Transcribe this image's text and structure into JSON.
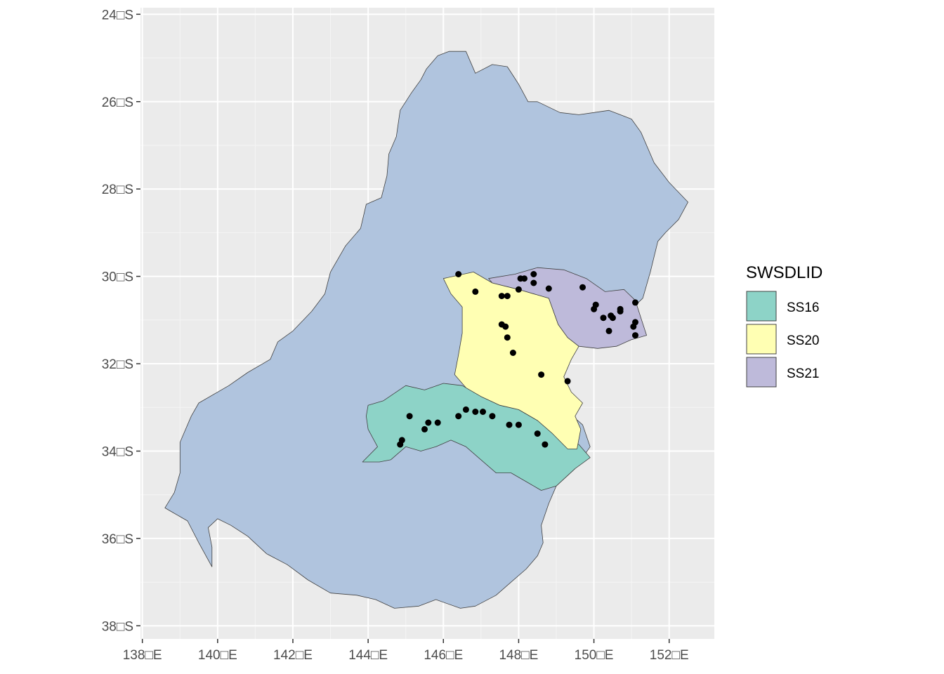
{
  "chart_data": {
    "type": "map",
    "x_axis": {
      "ticks": [
        {
          "value": 138,
          "label": "138□E"
        },
        {
          "value": 140,
          "label": "140□E"
        },
        {
          "value": 142,
          "label": "142□E"
        },
        {
          "value": 144,
          "label": "144□E"
        },
        {
          "value": 146,
          "label": "146□E"
        },
        {
          "value": 148,
          "label": "148□E"
        },
        {
          "value": 150,
          "label": "150□E"
        },
        {
          "value": 152,
          "label": "152□E"
        }
      ],
      "range": [
        137.95,
        153.2
      ]
    },
    "y_axis": {
      "ticks": [
        {
          "value": -24,
          "label": "24□S"
        },
        {
          "value": -26,
          "label": "26□S"
        },
        {
          "value": -28,
          "label": "28□S"
        },
        {
          "value": -30,
          "label": "30□S"
        },
        {
          "value": -32,
          "label": "32□S"
        },
        {
          "value": -34,
          "label": "34□S"
        },
        {
          "value": -36,
          "label": "36□S"
        },
        {
          "value": -38,
          "label": "38□S"
        }
      ],
      "range": [
        -38.3,
        -23.85
      ]
    },
    "panel_background": "#ebebeb",
    "grid": true,
    "legend": {
      "title": "SWSDLID",
      "position": "right",
      "items": [
        {
          "label": "SS16",
          "color": "#8dd3c7"
        },
        {
          "label": "SS20",
          "color": "#ffffb3"
        },
        {
          "label": "SS21",
          "color": "#bebada"
        }
      ]
    },
    "regions": [
      {
        "name": "basin",
        "color": "#b0c4de",
        "outline": [
          [
            146.15,
            -24.85
          ],
          [
            146.6,
            -24.85
          ],
          [
            146.85,
            -25.35
          ],
          [
            147.3,
            -25.15
          ],
          [
            147.7,
            -25.2
          ],
          [
            148.0,
            -25.6
          ],
          [
            148.25,
            -26.0
          ],
          [
            148.5,
            -26.0
          ],
          [
            149.1,
            -26.25
          ],
          [
            149.6,
            -26.3
          ],
          [
            150.0,
            -26.25
          ],
          [
            150.4,
            -26.2
          ],
          [
            150.7,
            -26.3
          ],
          [
            151.0,
            -26.4
          ],
          [
            151.25,
            -26.7
          ],
          [
            151.6,
            -27.4
          ],
          [
            152.0,
            -27.85
          ],
          [
            152.5,
            -28.3
          ],
          [
            152.25,
            -28.7
          ],
          [
            151.9,
            -29.0
          ],
          [
            151.7,
            -29.2
          ],
          [
            151.5,
            -29.9
          ],
          [
            151.3,
            -30.5
          ],
          [
            151.0,
            -30.75
          ],
          [
            150.6,
            -31.0
          ],
          [
            150.2,
            -31.2
          ],
          [
            149.6,
            -31.5
          ],
          [
            149.3,
            -32.0
          ],
          [
            149.1,
            -32.6
          ],
          [
            149.3,
            -33.1
          ],
          [
            149.7,
            -33.4
          ],
          [
            149.9,
            -33.9
          ],
          [
            149.5,
            -34.4
          ],
          [
            149.0,
            -34.8
          ],
          [
            148.8,
            -35.2
          ],
          [
            148.6,
            -35.7
          ],
          [
            148.65,
            -36.1
          ],
          [
            148.5,
            -36.4
          ],
          [
            148.2,
            -36.7
          ],
          [
            147.8,
            -37.0
          ],
          [
            147.4,
            -37.3
          ],
          [
            146.85,
            -37.55
          ],
          [
            146.45,
            -37.6
          ],
          [
            145.8,
            -37.4
          ],
          [
            145.35,
            -37.55
          ],
          [
            144.7,
            -37.6
          ],
          [
            144.2,
            -37.4
          ],
          [
            143.7,
            -37.3
          ],
          [
            143.0,
            -37.25
          ],
          [
            142.4,
            -36.95
          ],
          [
            141.85,
            -36.6
          ],
          [
            141.3,
            -36.35
          ],
          [
            140.8,
            -35.95
          ],
          [
            140.35,
            -35.7
          ],
          [
            140.0,
            -35.55
          ],
          [
            139.75,
            -35.75
          ],
          [
            139.85,
            -36.2
          ],
          [
            139.85,
            -36.65
          ],
          [
            139.5,
            -36.1
          ],
          [
            139.2,
            -35.6
          ],
          [
            138.8,
            -35.4
          ],
          [
            138.6,
            -35.3
          ],
          [
            138.85,
            -34.95
          ],
          [
            139.0,
            -34.5
          ],
          [
            139.0,
            -33.8
          ],
          [
            139.3,
            -33.2
          ],
          [
            139.5,
            -32.9
          ],
          [
            140.3,
            -32.5
          ],
          [
            140.8,
            -32.2
          ],
          [
            141.4,
            -31.9
          ],
          [
            141.6,
            -31.5
          ],
          [
            142.0,
            -31.25
          ],
          [
            142.5,
            -30.8
          ],
          [
            142.85,
            -30.4
          ],
          [
            143.0,
            -29.9
          ],
          [
            143.4,
            -29.3
          ],
          [
            143.8,
            -28.9
          ],
          [
            143.95,
            -28.35
          ],
          [
            144.35,
            -28.2
          ],
          [
            144.5,
            -27.7
          ],
          [
            144.55,
            -27.2
          ],
          [
            144.75,
            -26.8
          ],
          [
            144.85,
            -26.2
          ],
          [
            145.15,
            -25.8
          ],
          [
            145.4,
            -25.5
          ],
          [
            145.55,
            -25.25
          ],
          [
            145.85,
            -24.95
          ]
        ]
      },
      {
        "name": "SS16",
        "color": "#8dd3c7",
        "outline": [
          [
            144.0,
            -32.95
          ],
          [
            144.4,
            -32.85
          ],
          [
            145.0,
            -32.5
          ],
          [
            145.5,
            -32.6
          ],
          [
            146.0,
            -32.45
          ],
          [
            146.5,
            -32.5
          ],
          [
            147.0,
            -32.75
          ],
          [
            147.5,
            -32.95
          ],
          [
            148.0,
            -33.05
          ],
          [
            148.5,
            -33.3
          ],
          [
            149.0,
            -33.6
          ],
          [
            149.6,
            -33.85
          ],
          [
            149.9,
            -34.15
          ],
          [
            149.5,
            -34.4
          ],
          [
            149.0,
            -34.8
          ],
          [
            148.6,
            -34.9
          ],
          [
            148.3,
            -34.75
          ],
          [
            147.8,
            -34.5
          ],
          [
            147.4,
            -34.5
          ],
          [
            147.0,
            -34.2
          ],
          [
            146.6,
            -33.9
          ],
          [
            146.2,
            -33.75
          ],
          [
            145.8,
            -33.9
          ],
          [
            145.4,
            -34.0
          ],
          [
            145.0,
            -33.9
          ],
          [
            144.6,
            -34.2
          ],
          [
            144.3,
            -34.25
          ],
          [
            143.85,
            -34.25
          ],
          [
            144.25,
            -33.9
          ],
          [
            144.0,
            -33.5
          ],
          [
            143.95,
            -33.2
          ]
        ]
      },
      {
        "name": "SS20",
        "color": "#ffffb3",
        "outline": [
          [
            146.0,
            -30.05
          ],
          [
            146.8,
            -29.9
          ],
          [
            147.3,
            -30.15
          ],
          [
            148.0,
            -30.3
          ],
          [
            148.8,
            -30.5
          ],
          [
            149.05,
            -31.1
          ],
          [
            149.3,
            -31.4
          ],
          [
            149.6,
            -31.6
          ],
          [
            149.4,
            -31.9
          ],
          [
            149.2,
            -32.3
          ],
          [
            149.4,
            -32.65
          ],
          [
            149.7,
            -32.9
          ],
          [
            149.5,
            -33.2
          ],
          [
            149.65,
            -33.5
          ],
          [
            149.55,
            -33.95
          ],
          [
            149.3,
            -33.95
          ],
          [
            148.9,
            -33.6
          ],
          [
            148.5,
            -33.3
          ],
          [
            148.0,
            -33.05
          ],
          [
            147.5,
            -32.95
          ],
          [
            147.0,
            -32.75
          ],
          [
            146.6,
            -32.55
          ],
          [
            146.3,
            -32.25
          ],
          [
            146.4,
            -31.8
          ],
          [
            146.5,
            -31.3
          ],
          [
            146.5,
            -30.7
          ],
          [
            146.2,
            -30.4
          ]
        ]
      },
      {
        "name": "SS21",
        "color": "#bebada",
        "outline": [
          [
            147.2,
            -30.05
          ],
          [
            147.9,
            -29.95
          ],
          [
            148.5,
            -29.8
          ],
          [
            149.2,
            -29.85
          ],
          [
            149.8,
            -30.05
          ],
          [
            150.3,
            -30.35
          ],
          [
            150.8,
            -30.3
          ],
          [
            151.1,
            -30.55
          ],
          [
            151.25,
            -30.95
          ],
          [
            151.4,
            -31.35
          ],
          [
            151.0,
            -31.45
          ],
          [
            150.6,
            -31.6
          ],
          [
            150.1,
            -31.65
          ],
          [
            149.6,
            -31.6
          ],
          [
            149.3,
            -31.4
          ],
          [
            149.05,
            -31.1
          ],
          [
            148.8,
            -30.5
          ],
          [
            148.0,
            -30.3
          ],
          [
            147.3,
            -30.15
          ]
        ]
      }
    ],
    "points": [
      [
        146.4,
        -29.95
      ],
      [
        146.85,
        -30.35
      ],
      [
        147.55,
        -30.45
      ],
      [
        147.7,
        -30.45
      ],
      [
        148.0,
        -30.3
      ],
      [
        148.05,
        -30.05
      ],
      [
        148.15,
        -30.05
      ],
      [
        148.4,
        -29.95
      ],
      [
        148.4,
        -30.15
      ],
      [
        148.8,
        -30.28
      ],
      [
        149.7,
        -30.25
      ],
      [
        150.0,
        -30.75
      ],
      [
        150.05,
        -30.65
      ],
      [
        150.25,
        -30.95
      ],
      [
        150.45,
        -30.9
      ],
      [
        150.5,
        -30.95
      ],
      [
        150.4,
        -31.25
      ],
      [
        150.7,
        -30.75
      ],
      [
        150.7,
        -30.8
      ],
      [
        151.05,
        -31.15
      ],
      [
        151.1,
        -30.6
      ],
      [
        151.1,
        -31.05
      ],
      [
        151.1,
        -31.35
      ],
      [
        147.55,
        -31.1
      ],
      [
        147.65,
        -31.15
      ],
      [
        147.7,
        -31.4
      ],
      [
        147.85,
        -31.75
      ],
      [
        148.6,
        -32.25
      ],
      [
        149.3,
        -32.4
      ],
      [
        145.1,
        -33.2
      ],
      [
        145.5,
        -33.5
      ],
      [
        145.6,
        -33.35
      ],
      [
        145.85,
        -33.35
      ],
      [
        146.4,
        -33.2
      ],
      [
        146.6,
        -33.05
      ],
      [
        146.85,
        -33.1
      ],
      [
        147.05,
        -33.1
      ],
      [
        147.3,
        -33.2
      ],
      [
        147.75,
        -33.4
      ],
      [
        148.0,
        -33.4
      ],
      [
        148.5,
        -33.6
      ],
      [
        148.7,
        -33.85
      ],
      [
        144.9,
        -33.75
      ],
      [
        144.85,
        -33.85
      ]
    ]
  }
}
